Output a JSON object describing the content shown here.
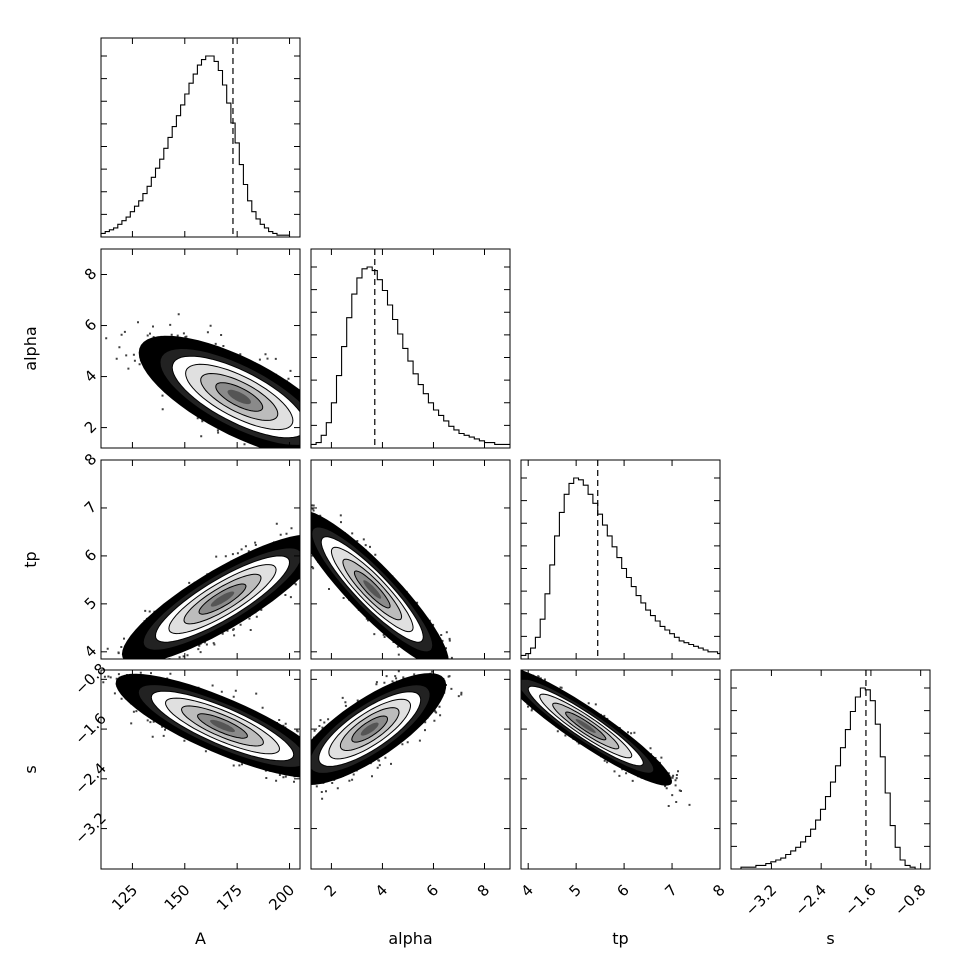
{
  "chart_data": {
    "type": "corner",
    "parameters": [
      "A",
      "alpha",
      "tp",
      "s"
    ],
    "axis_labels": {
      "x": [
        "A",
        "alpha",
        "tp",
        "s"
      ],
      "y": [
        "alpha",
        "tp",
        "s"
      ]
    },
    "ranges": {
      "A": [
        110,
        205
      ],
      "alpha": [
        1.2,
        9.0
      ],
      "tp": [
        3.85,
        8.0
      ],
      "s": [
        -3.85,
        -0.65
      ]
    },
    "ticks": {
      "A": [
        125,
        150,
        175,
        200
      ],
      "alpha": [
        2,
        4,
        6,
        8
      ],
      "tp": [
        4,
        5,
        6,
        7,
        8
      ],
      "s": [
        -3.2,
        -2.4,
        -1.6,
        -0.8
      ]
    },
    "tick_labels": {
      "A": [
        "125",
        "150",
        "175",
        "200"
      ],
      "alpha": [
        "2",
        "4",
        "6",
        "8"
      ],
      "tp": [
        "4",
        "5",
        "6",
        "7",
        "8"
      ],
      "s": [
        "−3.2",
        "−2.4",
        "−1.6",
        "−0.8"
      ]
    },
    "marginals": [
      {
        "param": "A",
        "dashed_line": 173,
        "x_start": 110,
        "bin_width": 2,
        "heights": [
          0.02,
          0.03,
          0.04,
          0.05,
          0.07,
          0.09,
          0.11,
          0.14,
          0.17,
          0.2,
          0.24,
          0.28,
          0.33,
          0.38,
          0.43,
          0.49,
          0.55,
          0.61,
          0.67,
          0.73,
          0.79,
          0.85,
          0.9,
          0.95,
          0.98,
          1.0,
          1.0,
          0.97,
          0.92,
          0.84,
          0.74,
          0.63,
          0.52,
          0.4,
          0.29,
          0.2,
          0.14,
          0.1,
          0.07,
          0.05,
          0.03,
          0.02,
          0.01,
          0.01,
          0.01,
          0.0,
          0.0,
          0.0
        ]
      },
      {
        "param": "alpha",
        "dashed_line": 3.7,
        "x_start": 1.2,
        "bin_width": 0.2,
        "heights": [
          0.02,
          0.03,
          0.07,
          0.14,
          0.25,
          0.4,
          0.56,
          0.72,
          0.85,
          0.94,
          0.99,
          1.0,
          0.98,
          0.93,
          0.87,
          0.79,
          0.71,
          0.63,
          0.55,
          0.48,
          0.41,
          0.35,
          0.3,
          0.25,
          0.21,
          0.18,
          0.15,
          0.12,
          0.1,
          0.08,
          0.07,
          0.06,
          0.05,
          0.04,
          0.03,
          0.03,
          0.02,
          0.02,
          0.02
        ]
      },
      {
        "param": "tp",
        "dashed_line": 5.45,
        "x_start": 3.85,
        "bin_width": 0.1,
        "heights": [
          0.02,
          0.03,
          0.06,
          0.12,
          0.22,
          0.36,
          0.52,
          0.68,
          0.81,
          0.91,
          0.97,
          1.0,
          0.99,
          0.96,
          0.91,
          0.86,
          0.8,
          0.74,
          0.68,
          0.62,
          0.56,
          0.5,
          0.45,
          0.4,
          0.35,
          0.31,
          0.27,
          0.24,
          0.21,
          0.18,
          0.16,
          0.14,
          0.12,
          0.1,
          0.09,
          0.08,
          0.07,
          0.06,
          0.05,
          0.04,
          0.04,
          0.03
        ]
      },
      {
        "param": "s",
        "dashed_line": -1.68,
        "x_start": -3.85,
        "bin_width": 0.08,
        "heights": [
          0.0,
          0.0,
          0.01,
          0.01,
          0.01,
          0.02,
          0.02,
          0.03,
          0.04,
          0.05,
          0.06,
          0.08,
          0.1,
          0.12,
          0.15,
          0.18,
          0.22,
          0.27,
          0.33,
          0.4,
          0.48,
          0.57,
          0.67,
          0.77,
          0.87,
          0.95,
          1.0,
          0.99,
          0.93,
          0.8,
          0.62,
          0.42,
          0.24,
          0.12,
          0.05,
          0.02,
          0.01,
          0.0,
          0.0,
          0.0
        ]
      }
    ],
    "joint": [
      {
        "x": "A",
        "y": "alpha",
        "mode": [
          176,
          3.2
        ],
        "x_spread": 16,
        "y_spread": 0.8,
        "correlation": -0.72
      },
      {
        "x": "A",
        "y": "tp",
        "mode": [
          168,
          5.1
        ],
        "x_spread": 16,
        "y_spread": 0.45,
        "correlation": 0.85
      },
      {
        "x": "A",
        "y": "s",
        "mode": [
          168,
          -1.55
        ],
        "x_spread": 17,
        "y_spread": 0.28,
        "correlation": -0.82
      },
      {
        "x": "alpha",
        "y": "tp",
        "mode": [
          3.6,
          5.3
        ],
        "x_spread": 1.0,
        "y_spread": 0.55,
        "correlation": -0.9
      },
      {
        "x": "alpha",
        "y": "s",
        "mode": [
          3.5,
          -1.6
        ],
        "x_spread": 1.0,
        "y_spread": 0.3,
        "correlation": 0.78
      },
      {
        "x": "tp",
        "y": "s",
        "mode": [
          5.2,
          -1.55
        ],
        "x_spread": 0.6,
        "y_spread": 0.32,
        "correlation": -0.93
      }
    ]
  }
}
